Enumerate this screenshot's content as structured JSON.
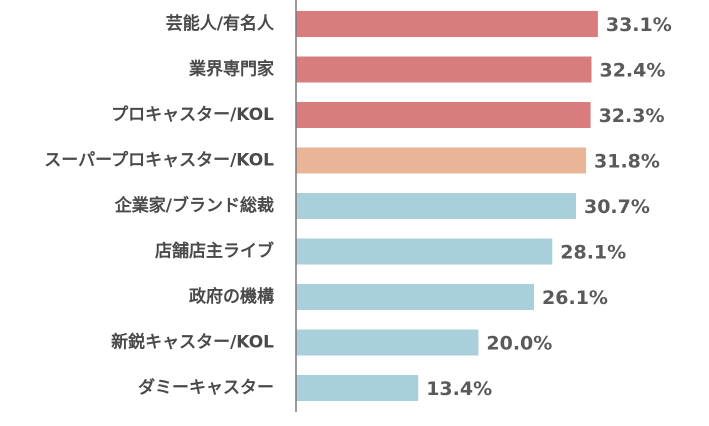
{
  "chart_data": {
    "type": "bar",
    "orientation": "horizontal",
    "title": "",
    "xlabel": "",
    "ylabel": "",
    "xlim": [
      0,
      35
    ],
    "grid": false,
    "categories": [
      "芸能人/有名人",
      "業界専門家",
      "プロキャスター/KOL",
      "スーパープロキャスター/KOL",
      "企業家/ブランド総裁",
      "店舗店主ライブ",
      "政府の機構",
      "新鋭キャスター/KOL",
      "ダミーキャスター"
    ],
    "values": [
      33.1,
      32.4,
      32.3,
      31.8,
      30.7,
      28.1,
      26.1,
      20.0,
      13.4
    ],
    "value_labels": [
      "33.1%",
      "32.4%",
      "32.3%",
      "31.8%",
      "30.7%",
      "28.1%",
      "26.1%",
      "20.0%",
      "13.4%"
    ],
    "bar_colors": [
      "#d87c7e",
      "#d87c7e",
      "#d87c7e",
      "#e9b596",
      "#a8cfda",
      "#a8cfda",
      "#a8cfda",
      "#a8cfda",
      "#a8cfda"
    ],
    "axis_color": "#7a7a7a"
  }
}
